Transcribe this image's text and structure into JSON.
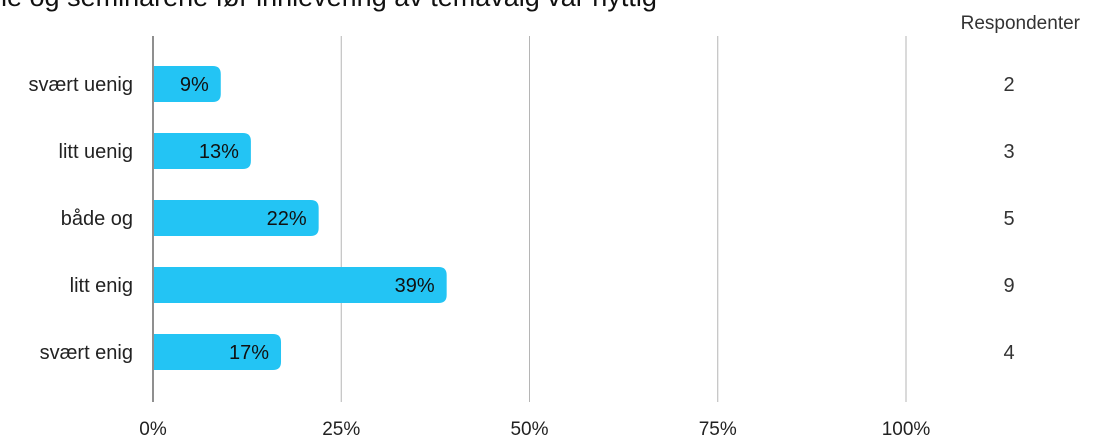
{
  "chart_data": {
    "type": "bar",
    "orientation": "horizontal",
    "title": "ne og seminarene før innlevering av temavalg var nyttig",
    "categories": [
      "svært uenig",
      "litt uenig",
      "både og",
      "litt enig",
      "svært enig"
    ],
    "values": [
      9,
      13,
      22,
      39,
      17
    ],
    "value_labels": [
      "9%",
      "13%",
      "22%",
      "39%",
      "17%"
    ],
    "x_ticks": [
      "0%",
      "25%",
      "50%",
      "75%",
      "100%"
    ],
    "xlim": [
      0,
      100
    ],
    "grid": true,
    "respondents_header": "Respondenter",
    "respondents": [
      "2",
      "3",
      "5",
      "9",
      "4"
    ],
    "bar_color": "#23c4f4"
  }
}
